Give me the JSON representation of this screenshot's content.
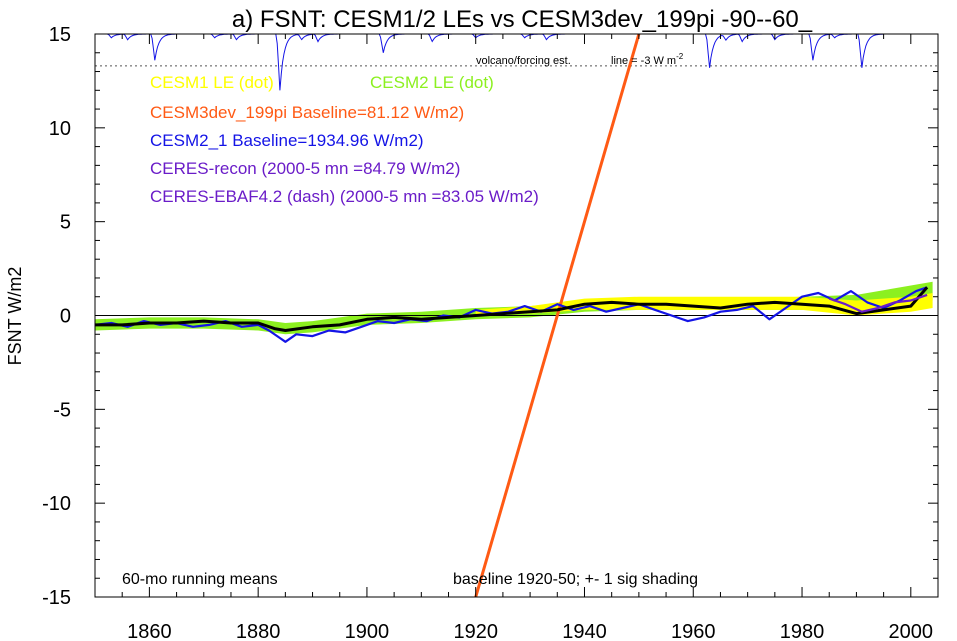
{
  "chart_data": {
    "type": "line",
    "title": "a) FSNT: CESM1/2 LEs vs CESM3dev_199pi -90--60_",
    "ylabel": "FSNT W/m2",
    "xlabel": "",
    "xlim": [
      1850,
      2005
    ],
    "ylim": [
      -15,
      15
    ],
    "x_ticks": [
      1860,
      1880,
      1900,
      1920,
      1940,
      1960,
      1980,
      2000
    ],
    "y_ticks": [
      -15,
      -10,
      -5,
      0,
      5,
      10,
      15
    ],
    "volcano_label": "volcano/forcing est.",
    "volcano_line_label": "line = -3 W m",
    "volcano_line_sup": "-2",
    "dotted_line_y": 13.3,
    "legend": [
      {
        "text": "CESM1 LE (dot)",
        "color": "#ffff00"
      },
      {
        "text": "CESM2 LE (dot)",
        "color": "#8cf020"
      },
      {
        "text": "CESM3dev_199pi Baseline=81.12 W/m2)",
        "color": "#ff5a14"
      },
      {
        "text": "CESM2_1 Baseline=1934.96 W/m2)",
        "color": "#1414e6"
      },
      {
        "text": "CERES-recon (2000-5 mn =84.79 W/m2)",
        "color": "#6a1cc8"
      },
      {
        "text": "CERES-EBAF4.2 (dash) (2000-5 mn =83.05 W/m2)",
        "color": "#6a1cc8"
      }
    ],
    "notes": {
      "left": "60-mo running means",
      "right": "baseline 1920-50; +- 1 sig shading"
    },
    "series": [
      {
        "name": "CESM3dev_199pi",
        "color": "#ff5a14",
        "x": [
          1920,
          1950
        ],
        "y": [
          -15,
          15
        ]
      },
      {
        "name": "CESM2_1",
        "color": "#1414e6",
        "x": [
          1850,
          1853,
          1856,
          1859,
          1862,
          1865,
          1868,
          1871,
          1874,
          1877,
          1880,
          1882,
          1884,
          1885,
          1887,
          1890,
          1893,
          1896,
          1899,
          1902,
          1905,
          1908,
          1911,
          1914,
          1917,
          1920,
          1923,
          1926,
          1929,
          1932,
          1935,
          1938,
          1941,
          1944,
          1947,
          1950,
          1953,
          1956,
          1959,
          1962,
          1965,
          1968,
          1971,
          1974,
          1977,
          1980,
          1983,
          1986,
          1989,
          1992,
          1995,
          1998,
          2001,
          2003
        ],
        "y": [
          -0.5,
          -0.4,
          -0.6,
          -0.3,
          -0.5,
          -0.4,
          -0.6,
          -0.5,
          -0.3,
          -0.6,
          -0.5,
          -0.8,
          -1.2,
          -1.4,
          -1.0,
          -1.1,
          -0.8,
          -0.9,
          -0.6,
          -0.3,
          -0.4,
          -0.2,
          -0.3,
          0.0,
          -0.1,
          0.3,
          0.1,
          0.2,
          0.5,
          0.2,
          0.6,
          0.3,
          0.5,
          0.2,
          0.4,
          0.6,
          0.3,
          0.0,
          -0.3,
          -0.1,
          0.2,
          0.3,
          0.5,
          -0.2,
          0.4,
          1.0,
          1.2,
          0.8,
          1.3,
          0.7,
          0.4,
          0.8,
          1.3,
          1.5
        ]
      },
      {
        "name": "CESM1 LE mean",
        "color": "#000000",
        "x": [
          1850,
          1855,
          1860,
          1865,
          1870,
          1875,
          1880,
          1883,
          1885,
          1890,
          1895,
          1900,
          1905,
          1910,
          1915,
          1920,
          1925,
          1930,
          1935,
          1940,
          1945,
          1950,
          1955,
          1960,
          1965,
          1970,
          1975,
          1980,
          1985,
          1990,
          1995,
          2000,
          2003
        ],
        "y": [
          -0.5,
          -0.5,
          -0.4,
          -0.4,
          -0.3,
          -0.4,
          -0.4,
          -0.7,
          -0.8,
          -0.6,
          -0.5,
          -0.2,
          -0.1,
          -0.2,
          -0.1,
          0.0,
          0.1,
          0.2,
          0.3,
          0.6,
          0.7,
          0.6,
          0.6,
          0.5,
          0.4,
          0.6,
          0.7,
          0.6,
          0.5,
          0.1,
          0.3,
          0.5,
          1.5
        ]
      },
      {
        "name": "CERES-recon",
        "color": "#6a1cc8",
        "x": [
          1985,
          1988,
          1991,
          1994,
          1997,
          2000,
          2003
        ],
        "y": [
          0.9,
          0.6,
          0.2,
          0.4,
          0.7,
          0.8,
          1.1
        ]
      }
    ],
    "bands": [
      {
        "name": "CESM2 LE",
        "color": "#8cf020",
        "x": [
          1850,
          1860,
          1870,
          1880,
          1885,
          1890,
          1900,
          1910,
          1920,
          1930,
          1940,
          1950,
          1960,
          1970,
          1980,
          1990,
          2000,
          2004
        ],
        "lower": [
          -0.8,
          -0.7,
          -0.7,
          -0.8,
          -1.0,
          -0.9,
          -0.5,
          -0.4,
          -0.2,
          -0.1,
          0.2,
          0.3,
          0.3,
          0.3,
          0.3,
          0.3,
          0.6,
          0.8
        ],
        "upper": [
          -0.2,
          -0.1,
          -0.1,
          -0.2,
          -0.4,
          -0.3,
          0.1,
          0.2,
          0.4,
          0.5,
          0.8,
          0.9,
          0.9,
          0.9,
          1.0,
          1.1,
          1.6,
          1.8
        ]
      },
      {
        "name": "CESM1 LE",
        "color": "#ffff00",
        "x": [
          1920,
          1930,
          1940,
          1950,
          1960,
          1970,
          1980,
          1990,
          2000,
          2004
        ],
        "lower": [
          0.0,
          0.1,
          0.3,
          0.3,
          0.3,
          0.3,
          0.3,
          0.0,
          0.2,
          0.4
        ],
        "upper": [
          0.3,
          0.5,
          0.9,
          1.0,
          1.0,
          1.0,
          1.0,
          0.8,
          1.0,
          1.2
        ]
      }
    ],
    "volcano_dips": [
      {
        "x": 1853,
        "depth": 0.2
      },
      {
        "x": 1856,
        "depth": 0.3
      },
      {
        "x": 1861,
        "depth": 1.4
      },
      {
        "x": 1872,
        "depth": 0.2
      },
      {
        "x": 1876,
        "depth": 0.3
      },
      {
        "x": 1884,
        "depth": 3.0
      },
      {
        "x": 1888,
        "depth": 0.3
      },
      {
        "x": 1891,
        "depth": 0.4
      },
      {
        "x": 1903,
        "depth": 1.0
      },
      {
        "x": 1912,
        "depth": 0.4
      },
      {
        "x": 1920,
        "depth": 0.2
      },
      {
        "x": 1929,
        "depth": 0.2
      },
      {
        "x": 1933,
        "depth": 0.3
      },
      {
        "x": 1963,
        "depth": 1.8
      },
      {
        "x": 1966,
        "depth": 0.3
      },
      {
        "x": 1969,
        "depth": 0.4
      },
      {
        "x": 1975,
        "depth": 0.3
      },
      {
        "x": 1982,
        "depth": 1.4
      },
      {
        "x": 1986,
        "depth": 0.2
      },
      {
        "x": 1991,
        "depth": 1.8
      }
    ]
  }
}
